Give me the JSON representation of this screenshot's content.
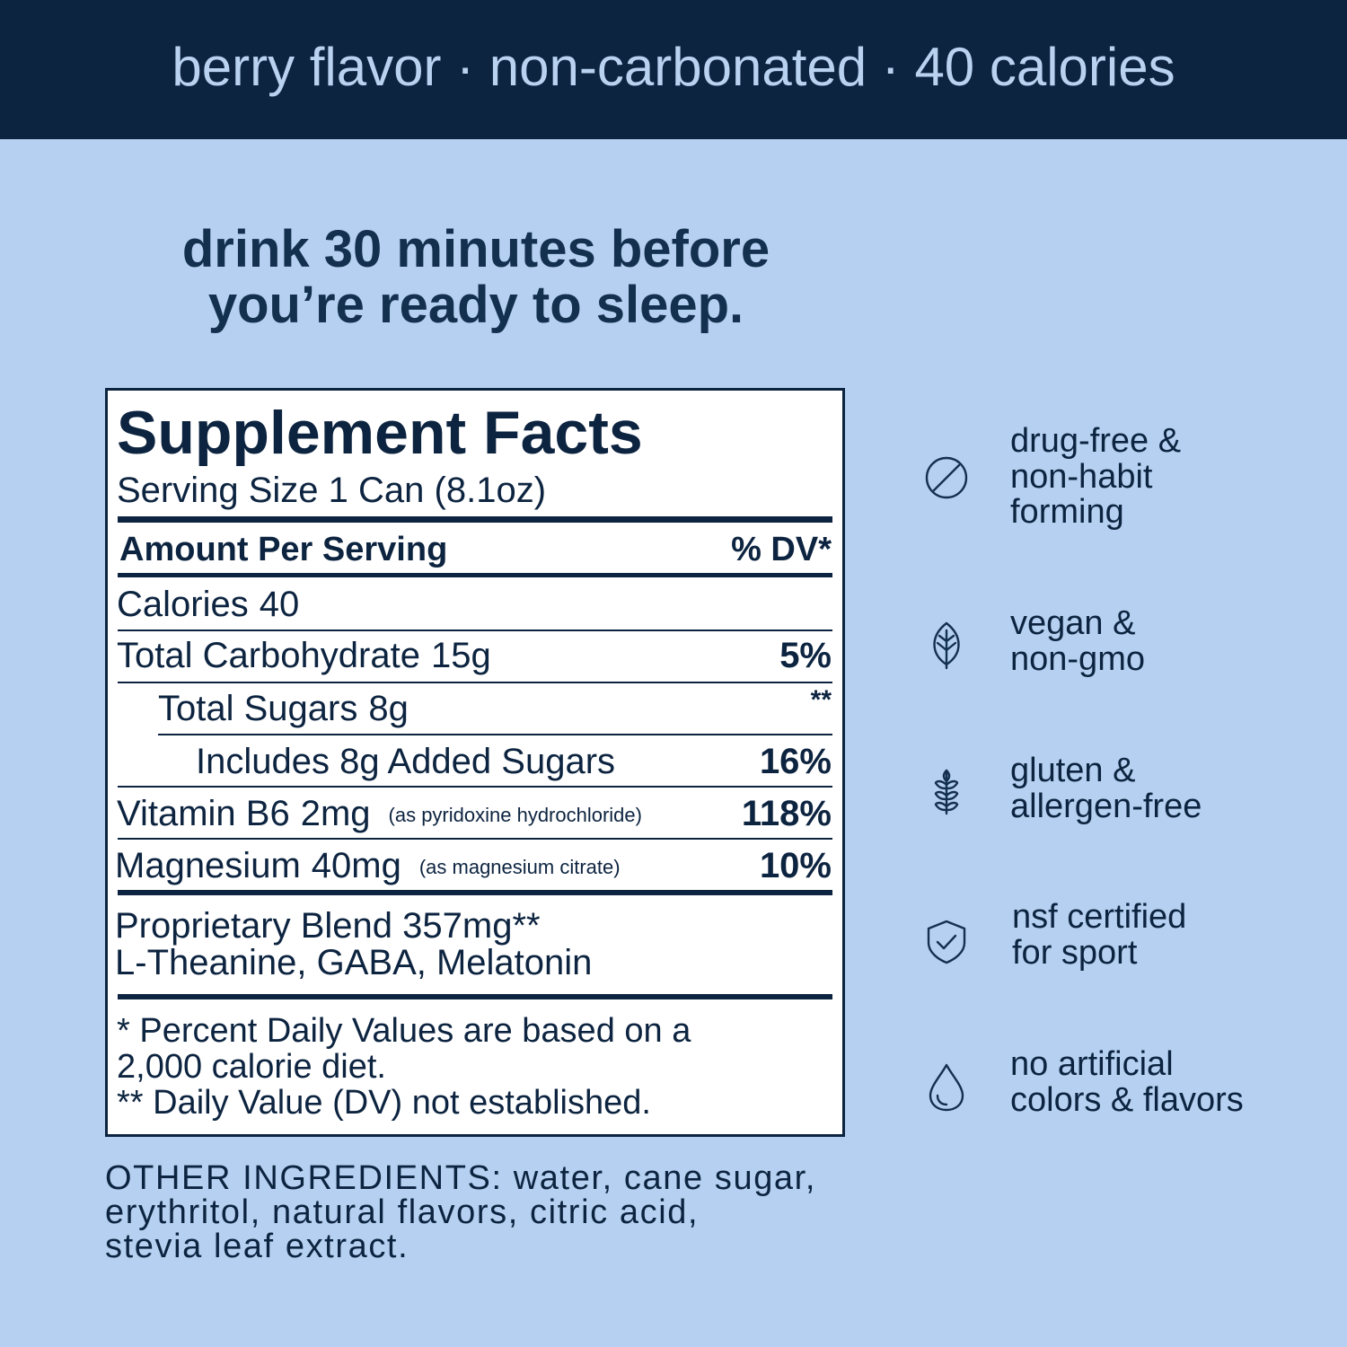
{
  "header": {
    "text": "berry flavor · non-carbonated · 40 calories"
  },
  "instruction": {
    "lines": [
      "drink 30 minutes before",
      "you’re ready to sleep."
    ]
  },
  "supplement_facts": {
    "title": "Supplement Facts",
    "serving_size": "Serving Size 1 Can (8.1oz)",
    "column_headers": [
      "Amount Per Serving",
      "% DV*"
    ],
    "rows": [
      {
        "name": "Calories",
        "amount": "40"
      },
      {
        "name": "Total Carbohydrate",
        "amount": "15g",
        "dv": "5%"
      },
      {
        "name": "Total Sugars",
        "amount": "8g",
        "dv": "**"
      },
      {
        "name": "Includes 8g Added Sugars",
        "dv": "16%"
      },
      {
        "name": "Vitamin B6",
        "amount": "2mg",
        "note": "(as pyridoxine hydrochloride)",
        "dv": "118%"
      },
      {
        "name": "Magnesium",
        "amount": "40mg",
        "note": "(as magnesium citrate)",
        "dv": "10%"
      }
    ],
    "blend": {
      "title": "Proprietary Blend 357mg**",
      "ingredients": "L-Theanine, GABA, Melatonin"
    },
    "footnotes": [
      "* Percent Daily Values are based on a",
      "2,000 calorie diet.",
      "** Daily Value (DV) not established."
    ]
  },
  "features": [
    {
      "lines": [
        "drug-free &",
        "non-habit",
        "forming"
      ]
    },
    {
      "lines": [
        "vegan &",
        "non-gmo"
      ]
    },
    {
      "lines": [
        "gluten &",
        "allergen-free"
      ]
    },
    {
      "lines": [
        "nsf certified",
        "for sport"
      ]
    },
    {
      "lines": [
        "no artificial",
        "colors & flavors"
      ]
    }
  ],
  "other_ingredients": {
    "lines": [
      "OTHER INGREDIENTS: water, cane sugar,",
      "erythritol, natural flavors, citric acid,",
      "stevia leaf extract."
    ]
  }
}
